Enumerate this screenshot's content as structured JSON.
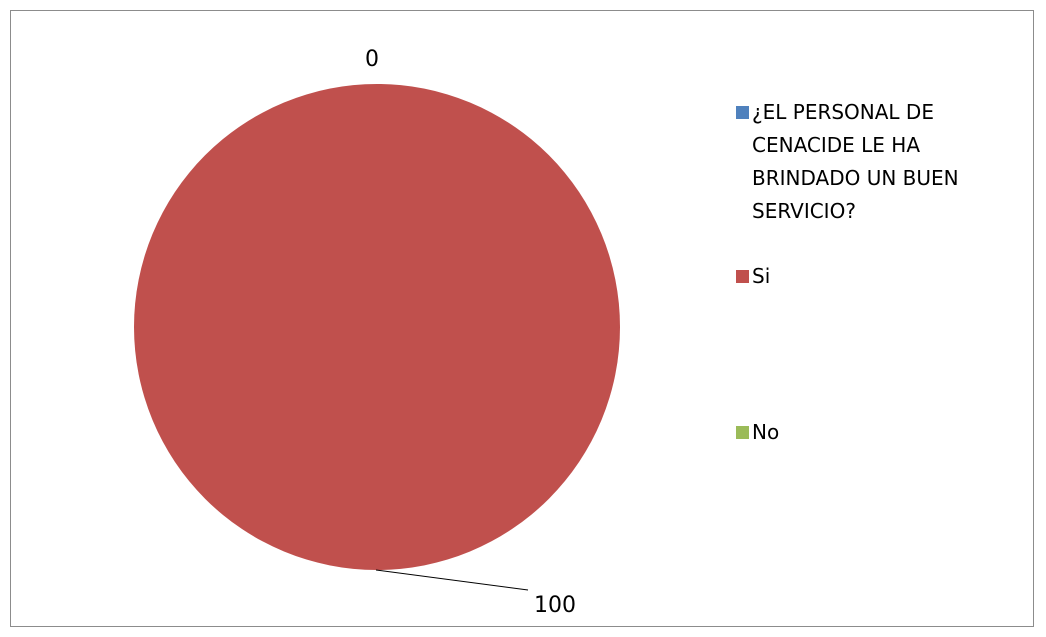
{
  "chart_data": {
    "type": "pie",
    "series": [
      {
        "name": "¿EL PERSONAL DE CENACIDE LE HA BRINDADO UN BUEN SERVICIO?",
        "value": null,
        "color": "#4f81bd"
      },
      {
        "name": "Si",
        "value": 100,
        "color": "#c0504d"
      },
      {
        "name": "No",
        "value": 0,
        "color": "#9bbb59"
      }
    ],
    "data_labels": [
      "0",
      "100"
    ],
    "legend_position": "right"
  }
}
